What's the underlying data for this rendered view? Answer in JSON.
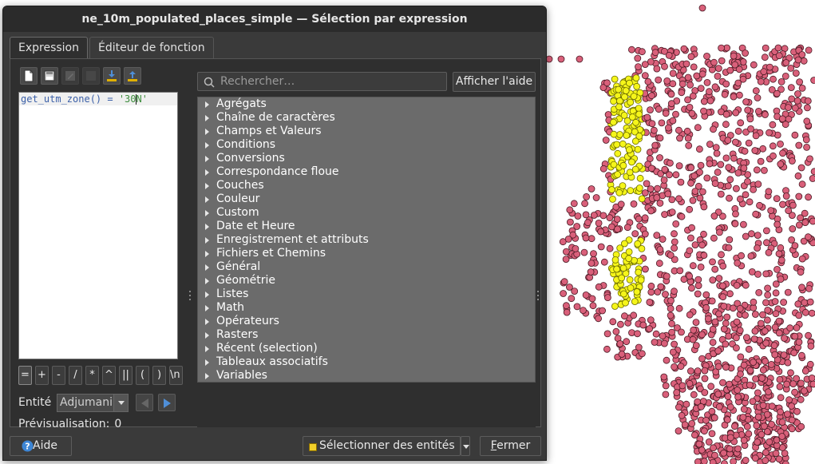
{
  "window": {
    "title": "ne_10m_populated_places_simple — Sélection par expression"
  },
  "tabs": [
    {
      "label": "Expression",
      "active": true
    },
    {
      "label": "Éditeur de fonction",
      "active": false
    }
  ],
  "toolbar": {
    "buttons": [
      {
        "icon": "new-file-icon",
        "enabled": true
      },
      {
        "icon": "save-icon",
        "enabled": true
      },
      {
        "icon": "edit-icon",
        "enabled": false
      },
      {
        "icon": "blank-icon",
        "enabled": false
      },
      {
        "icon": "import-icon",
        "enabled": true
      },
      {
        "icon": "export-icon",
        "enabled": true
      }
    ]
  },
  "editor": {
    "code_func": "get_utm_zone() = ",
    "code_str_a": "'30",
    "code_str_b": "N'"
  },
  "operators": [
    "=",
    "+",
    "-",
    "/",
    "*",
    "^",
    "||",
    "(",
    ")",
    "\\n"
  ],
  "entity": {
    "label": "Entité",
    "value": "Adjumani"
  },
  "preview": {
    "label": "Prévisualisation:",
    "value": "0"
  },
  "search": {
    "placeholder": "Rechercher…"
  },
  "help_button": "Afficher l'aide",
  "function_groups": [
    "Agrégats",
    "Chaîne de caractères",
    "Champs et Valeurs",
    "Conditions",
    "Conversions",
    "Correspondance floue",
    "Couches",
    "Couleur",
    "Custom",
    "Date et Heure",
    "Enregistrement et attributs",
    "Fichiers et Chemins",
    "Général",
    "Géométrie",
    "Listes",
    "Math",
    "Opérateurs",
    "Rasters",
    "Récent (selection)",
    "Tableaux associatifs",
    "Variables"
  ],
  "buttons": {
    "aide": "Aide",
    "select": "Sélectionner des entités",
    "close_first": "F",
    "close_rest": "ermer"
  },
  "colors": {
    "point_fill": "#d9607a",
    "point_stroke": "#4a1a24",
    "selected_fill": "#f5f51a",
    "selected_stroke": "#6b6b00",
    "dialog_bg": "#3a3a3a",
    "tree_bg": "#6b6b6b"
  }
}
